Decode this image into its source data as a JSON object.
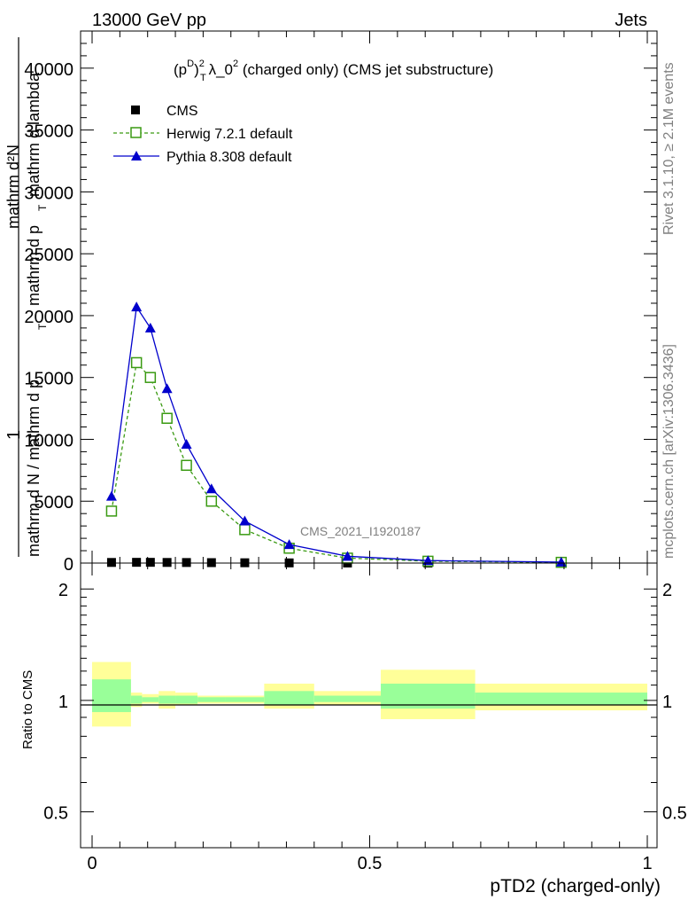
{
  "header": {
    "energy_label": "13000 GeV pp",
    "process_label": "Jets"
  },
  "side_text": {
    "rivet": "Rivet 3.1.10, ≥ 2.1M events",
    "mcplots": "mcplots.cern.ch [arXiv:1306.3436]"
  },
  "chart_data": [
    {
      "type": "line",
      "title_parts": {
        "p": "(p",
        "sup_d": "D",
        "sub_t": "T",
        "close": ")",
        "sup_2": "2",
        "rest": " λ_0",
        "sup_2b": "2",
        "tail": " (charged only) (CMS jet substructure)"
      },
      "watermark": "CMS_2021_I1920187",
      "ylabel_parts": {
        "top": "mathrm d²N",
        "one": "1",
        "bottom": "mathrm d N / mathrm d p",
        "denom": "mathrm d p",
        "denom2": "mathrm d lambda",
        "sub_t": "T",
        "sub_t2": "T"
      },
      "xlim": [
        0,
        1
      ],
      "ylim": [
        0,
        43000
      ],
      "y_ticks": [
        0,
        5000,
        10000,
        15000,
        20000,
        25000,
        30000,
        35000,
        40000
      ],
      "y_tick_labels": [
        "0",
        "5000",
        "10000",
        "15000",
        "20000",
        "25000",
        "30000",
        "35000",
        "40000"
      ],
      "legend_position": "top-left",
      "series": [
        {
          "name": "CMS",
          "style": "markers",
          "color": "#000000",
          "x": [
            0.035,
            0.08,
            0.105,
            0.135,
            0.17,
            0.215,
            0.275,
            0.355,
            0.46,
            0.605,
            0.845
          ],
          "y": [
            50,
            60,
            60,
            50,
            45,
            35,
            25,
            15,
            5,
            2,
            1
          ]
        },
        {
          "name": "Herwig 7.2.1 default",
          "style": "dashed-open-square",
          "color": "#3a9a12",
          "x": [
            0.035,
            0.08,
            0.105,
            0.135,
            0.17,
            0.215,
            0.275,
            0.355,
            0.46,
            0.605,
            0.845
          ],
          "y": [
            4200,
            16200,
            15000,
            11700,
            7900,
            5000,
            2700,
            1200,
            400,
            150,
            60
          ]
        },
        {
          "name": "Pythia 8.308 default",
          "style": "solid-triangle",
          "color": "#0000cc",
          "x": [
            0.035,
            0.08,
            0.105,
            0.135,
            0.17,
            0.215,
            0.275,
            0.355,
            0.46,
            0.605,
            0.845
          ],
          "y": [
            5400,
            20700,
            19000,
            14100,
            9600,
            6000,
            3400,
            1500,
            550,
            200,
            80
          ]
        }
      ]
    },
    {
      "type": "area",
      "ylabel": "Ratio to CMS",
      "xlabel": "pTD2 (charged-only)",
      "xlim": [
        0,
        1
      ],
      "ylim": [
        0.4,
        2.35
      ],
      "x_ticks": [
        0,
        0.5,
        1
      ],
      "x_tick_labels": [
        "0",
        "0.5",
        "1"
      ],
      "y_ticks": [
        0.5,
        1,
        2
      ],
      "y_tick_labels": [
        "0.5",
        "1",
        "2"
      ],
      "bands": {
        "x_edges": [
          0,
          0.07,
          0.09,
          0.12,
          0.15,
          0.19,
          0.24,
          0.31,
          0.4,
          0.52,
          0.69,
          1.0
        ],
        "yellow_lo": [
          0.85,
          0.96,
          0.98,
          0.95,
          0.97,
          0.98,
          0.98,
          0.95,
          0.97,
          0.89,
          0.94
        ],
        "yellow_hi": [
          1.27,
          1.05,
          1.04,
          1.06,
          1.05,
          1.03,
          1.03,
          1.11,
          1.06,
          1.21,
          1.11
        ],
        "green_lo": [
          0.93,
          0.98,
          0.99,
          0.98,
          0.98,
          0.99,
          0.99,
          0.97,
          0.99,
          0.95,
          0.97
        ],
        "green_hi": [
          1.14,
          1.03,
          1.02,
          1.03,
          1.03,
          1.02,
          1.02,
          1.06,
          1.03,
          1.11,
          1.05
        ]
      },
      "colors": {
        "yellow": "#ffff99",
        "green": "#99ff99",
        "line": "#000000"
      }
    }
  ]
}
